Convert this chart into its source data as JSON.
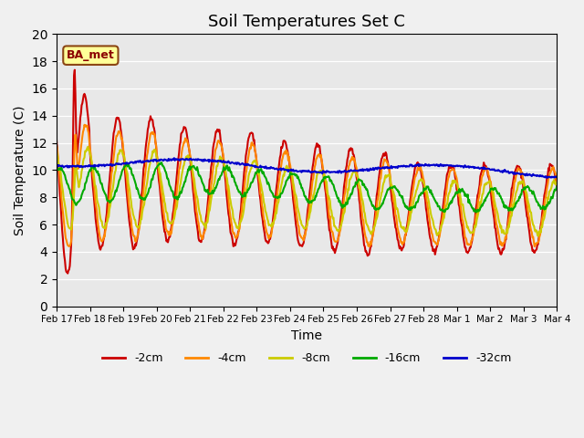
{
  "title": "Soil Temperatures Set C",
  "xlabel": "Time",
  "ylabel": "Soil Temperature (C)",
  "ylim": [
    0,
    20
  ],
  "n_days": 16,
  "background_color": "#e8e8e8",
  "plot_bg_color": "#e8e8e8",
  "annotation_text": "BA_met",
  "annotation_bg": "#ffff99",
  "annotation_border": "#8b4513",
  "legend_labels": [
    "-2cm",
    "-4cm",
    "-8cm",
    "-16cm",
    "-32cm"
  ],
  "legend_colors": [
    "#cc0000",
    "#ff8800",
    "#cccc00",
    "#00aa00",
    "#0000cc"
  ],
  "line_width": 1.5,
  "tick_labels": [
    "Feb 17",
    "Feb 18",
    "Feb 19",
    "Feb 20",
    "Feb 21",
    "Feb 22",
    "Feb 23",
    "Feb 24",
    "Feb 25",
    "Feb 26",
    "Feb 27",
    "Feb 28",
    "Mar 1",
    "Mar 2",
    "Mar 3",
    "Mar 4"
  ],
  "n_points_per_day": 48
}
